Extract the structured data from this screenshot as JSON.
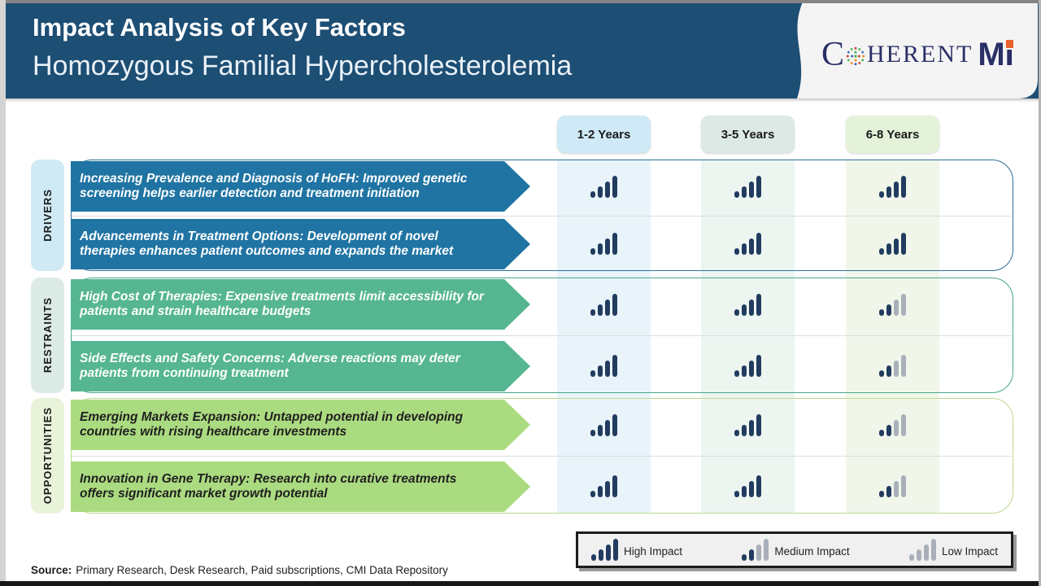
{
  "header": {
    "title": "Impact Analysis of Key Factors",
    "subtitle": "Homozygous Familial Hypercholesterolemia",
    "bg_color": "#1d4e74",
    "logo": {
      "brand": "COHERENTMI",
      "word_start": "C",
      "word_rest": "HERENT",
      "word_m": "M",
      "word_i": "I",
      "text_color": "#2a2f66",
      "accent_color": "#e8622d"
    }
  },
  "columns": [
    {
      "label": "1-2 Years",
      "header_bg": "#cfe9f6",
      "stripe_bg": "#e9f4fa"
    },
    {
      "label": "3-5 Years",
      "header_bg": "#dce9e4",
      "stripe_bg": "#edf5f1"
    },
    {
      "label": "6-8 Years",
      "header_bg": "#e4f2d9",
      "stripe_bg": "#f0f7ea"
    }
  ],
  "groups": [
    {
      "label": "DRIVERS",
      "label_bg": "#cfe9f5",
      "arrow_color": "#2074a3",
      "text_color": "#ffffff",
      "border_color": "#2d6f96",
      "rows": [
        {
          "text": "Increasing Prevalence and Diagnosis of HoFH: Improved genetic screening helps earlier detection and treatment initiation",
          "impacts": [
            "high",
            "high",
            "high"
          ]
        },
        {
          "text": "Advancements in Treatment Options: Development of novel therapies enhances patient outcomes and expands the market",
          "impacts": [
            "high",
            "high",
            "high"
          ]
        }
      ]
    },
    {
      "label": "RESTRAINTS",
      "label_bg": "#dcebe6",
      "arrow_color": "#55b691",
      "text_color": "#ffffff",
      "border_color": "#49a48e",
      "rows": [
        {
          "text": "High Cost of Therapies: Expensive treatments limit accessibility for patients and strain healthcare budgets",
          "impacts": [
            "high",
            "high",
            "medium"
          ]
        },
        {
          "text": "Side Effects and Safety Concerns: Adverse reactions may deter patients from continuing treatment",
          "impacts": [
            "high",
            "high",
            "medium"
          ]
        }
      ]
    },
    {
      "label": "OPPORTUNITIES",
      "label_bg": "#e8f3da",
      "arrow_color": "#abdb80",
      "text_color": "#1f1f1f",
      "border_color": "#bdd98c",
      "rows": [
        {
          "text": "Emerging Markets Expansion: Untapped potential in developing countries with rising healthcare investments",
          "impacts": [
            "high",
            "high",
            "medium"
          ]
        },
        {
          "text": "Innovation in Gene Therapy: Research into curative treatments offers significant market growth potential",
          "impacts": [
            "high",
            "high",
            "medium"
          ]
        }
      ]
    }
  ],
  "legend": {
    "items": [
      {
        "level": "high",
        "label": "High Impact"
      },
      {
        "level": "medium",
        "label": "Medium Impact"
      },
      {
        "level": "low",
        "label": "Low Impact"
      }
    ]
  },
  "impact_colors": {
    "filled": "#223c60",
    "unfilled": "#a9b0ba"
  },
  "source": {
    "label": "Source:",
    "text": "Primary Research, Desk Research, Paid subscriptions, CMI Data Repository"
  }
}
